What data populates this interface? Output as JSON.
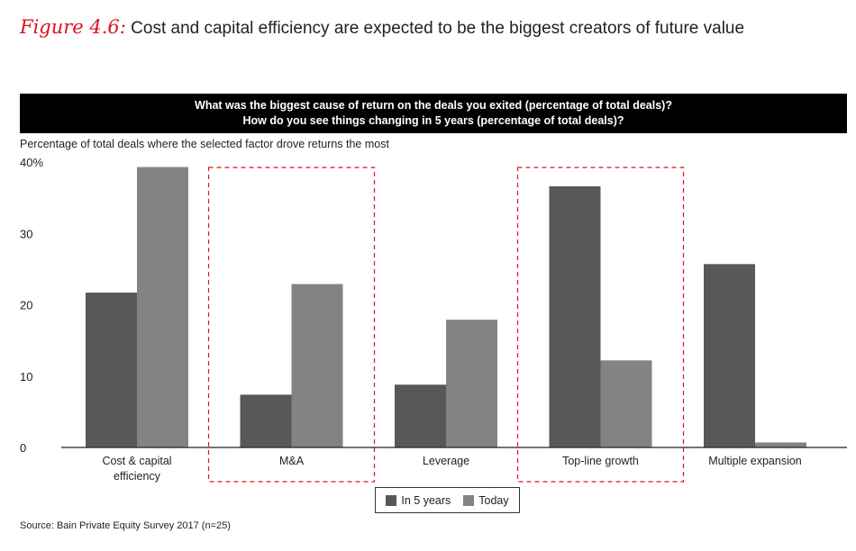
{
  "figure": {
    "label": "Figure 4.6:",
    "title": "Cost and capital efficiency are expected to be the biggest creators of future value"
  },
  "question": {
    "line1": "What was the biggest cause of return on the deals you exited (percentage of total deals)?",
    "line2": "How do you see things changing in 5 years (percentage of total deals)?"
  },
  "source": "Source: Bain Private Equity Survey 2017 (n=25)",
  "colors": {
    "in_5_years": "#58585a",
    "today": "#838386",
    "highlight_box": "#e0101b"
  },
  "chart_data": {
    "type": "bar",
    "ylabel": "Percentage of total deals where the selected factor drove returns the most",
    "ylim": [
      0,
      40
    ],
    "yticks": [
      "0",
      "10",
      "20",
      "30",
      "40%"
    ],
    "categories": [
      [
        "Cost & capital",
        "efficiency"
      ],
      [
        "M&A"
      ],
      [
        "Leverage"
      ],
      [
        "Top-line growth"
      ],
      [
        "Multiple expansion"
      ]
    ],
    "highlighted": [
      false,
      true,
      false,
      true,
      false
    ],
    "series": [
      {
        "name": "In 5 years",
        "values": [
          21.7,
          7.4,
          8.8,
          36.6,
          25.7
        ]
      },
      {
        "name": "Today",
        "values": [
          39.3,
          22.9,
          17.9,
          12.2,
          0.7
        ]
      }
    ],
    "legend_position": "bottom-center",
    "grid": false
  }
}
